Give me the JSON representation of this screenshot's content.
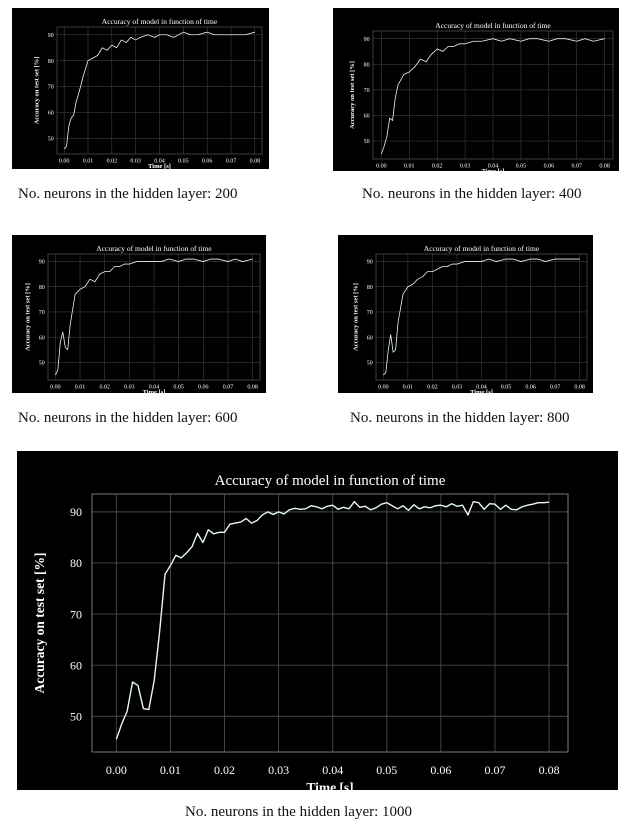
{
  "colors": {
    "background": "#000000",
    "line": "#e6f7ee",
    "grid": "#4a4a4a",
    "text": "#ffffff"
  },
  "chart_data": [
    {
      "type": "line",
      "title": "Accuracy of model in function of time",
      "xlabel": "Time [s]",
      "ylabel": "Accuracy on test set [%]",
      "caption": "No. neurons in the hidden layer: 200",
      "xlim": [
        -0.003,
        0.083
      ],
      "ylim": [
        44,
        93
      ],
      "xticks": [
        "0.00",
        "0.01",
        "0.02",
        "0.03",
        "0.04",
        "0.05",
        "0.06",
        "0.07",
        "0.08"
      ],
      "yticks": [
        "50",
        "60",
        "70",
        "80",
        "90"
      ],
      "x": [
        0,
        0.001,
        0.002,
        0.003,
        0.004,
        0.005,
        0.006,
        0.008,
        0.01,
        0.012,
        0.014,
        0.016,
        0.018,
        0.02,
        0.022,
        0.024,
        0.026,
        0.028,
        0.03,
        0.032,
        0.035,
        0.038,
        0.04,
        0.043,
        0.046,
        0.05,
        0.053,
        0.056,
        0.06,
        0.063,
        0.066,
        0.07,
        0.073,
        0.076,
        0.08
      ],
      "y": [
        46,
        47,
        55,
        58,
        59,
        64,
        67,
        74,
        80,
        81,
        82,
        85,
        84,
        86,
        85,
        88,
        87,
        89,
        88,
        89,
        90,
        89,
        90,
        90,
        89,
        91,
        90,
        90,
        91,
        90,
        90,
        90,
        90,
        90,
        91
      ]
    },
    {
      "type": "line",
      "title": "Accuracy of model in function of time",
      "xlabel": "Time [s]",
      "ylabel": "Accuracy on test set [%]",
      "caption": "No. neurons in the hidden layer: 400",
      "xlim": [
        -0.003,
        0.083
      ],
      "ylim": [
        43,
        93
      ],
      "xticks": [
        "0.00",
        "0.01",
        "0.02",
        "0.03",
        "0.04",
        "0.05",
        "0.06",
        "0.07",
        "0.08"
      ],
      "yticks": [
        "50",
        "60",
        "70",
        "80",
        "90"
      ],
      "x": [
        0,
        0.001,
        0.002,
        0.003,
        0.004,
        0.005,
        0.006,
        0.008,
        0.01,
        0.012,
        0.014,
        0.016,
        0.018,
        0.02,
        0.022,
        0.024,
        0.026,
        0.028,
        0.03,
        0.033,
        0.036,
        0.04,
        0.043,
        0.046,
        0.05,
        0.053,
        0.056,
        0.06,
        0.063,
        0.066,
        0.07,
        0.073,
        0.076,
        0.08
      ],
      "y": [
        45,
        48,
        52,
        59,
        58,
        67,
        72,
        76,
        77,
        79,
        82,
        81,
        84,
        86,
        85,
        87,
        87,
        88,
        88,
        89,
        89,
        90,
        89,
        90,
        89,
        90,
        90,
        89,
        90,
        90,
        89,
        90,
        89,
        90
      ]
    },
    {
      "type": "line",
      "title": "Accuracy of model in function of time",
      "xlabel": "Time [s]",
      "ylabel": "Accuracy on test set [%]",
      "caption": "No. neurons in the hidden layer: 600",
      "xlim": [
        -0.003,
        0.083
      ],
      "ylim": [
        43,
        93
      ],
      "xticks": [
        "0.00",
        "0.01",
        "0.02",
        "0.03",
        "0.04",
        "0.05",
        "0.06",
        "0.07",
        "0.08"
      ],
      "yticks": [
        "50",
        "60",
        "70",
        "80",
        "90"
      ],
      "x": [
        0,
        0.001,
        0.002,
        0.003,
        0.004,
        0.005,
        0.006,
        0.008,
        0.01,
        0.012,
        0.014,
        0.016,
        0.018,
        0.02,
        0.022,
        0.024,
        0.026,
        0.028,
        0.03,
        0.033,
        0.036,
        0.04,
        0.043,
        0.046,
        0.05,
        0.053,
        0.056,
        0.06,
        0.063,
        0.066,
        0.07,
        0.073,
        0.076,
        0.08
      ],
      "y": [
        45,
        47,
        58,
        62,
        56,
        55,
        65,
        77,
        79,
        80,
        83,
        82,
        85,
        86,
        86,
        88,
        88,
        89,
        89,
        90,
        90,
        90,
        90,
        91,
        90,
        91,
        91,
        90,
        91,
        91,
        90,
        91,
        90,
        91
      ]
    },
    {
      "type": "line",
      "title": "Accuracy of model in function of time",
      "xlabel": "Time [s]",
      "ylabel": "Accuracy on test set [%]",
      "caption": "No. neurons in the hidden layer: 800",
      "xlim": [
        -0.003,
        0.083
      ],
      "ylim": [
        43,
        93
      ],
      "xticks": [
        "0.00",
        "0.01",
        "0.02",
        "0.03",
        "0.04",
        "0.05",
        "0.06",
        "0.07",
        "0.08"
      ],
      "yticks": [
        "50",
        "60",
        "70",
        "80",
        "90"
      ],
      "x": [
        0,
        0.001,
        0.002,
        0.003,
        0.004,
        0.005,
        0.006,
        0.008,
        0.01,
        0.012,
        0.014,
        0.016,
        0.018,
        0.02,
        0.022,
        0.024,
        0.026,
        0.028,
        0.03,
        0.033,
        0.036,
        0.04,
        0.043,
        0.046,
        0.05,
        0.053,
        0.056,
        0.06,
        0.063,
        0.066,
        0.07,
        0.073,
        0.076,
        0.08
      ],
      "y": [
        45,
        46,
        55,
        61,
        54,
        55,
        66,
        77,
        80,
        81,
        83,
        84,
        86,
        86,
        87,
        88,
        88,
        89,
        89,
        90,
        90,
        90,
        91,
        90,
        91,
        91,
        90,
        91,
        91,
        90,
        91,
        91,
        91,
        91
      ]
    },
    {
      "type": "line",
      "title": "Accuracy of model in function of time",
      "xlabel": "Time [s]",
      "ylabel": "Accuracy on test set [%]",
      "caption": "No. neurons in the hidden layer: 1000",
      "xlim": [
        -0.0045,
        0.0835
      ],
      "ylim": [
        43,
        93.5
      ],
      "xticks": [
        "0.00",
        "0.01",
        "0.02",
        "0.03",
        "0.04",
        "0.05",
        "0.06",
        "0.07",
        "0.08"
      ],
      "yticks": [
        "50",
        "60",
        "70",
        "80",
        "90"
      ],
      "x": [
        0,
        0.001,
        0.002,
        0.003,
        0.004,
        0.005,
        0.006,
        0.007,
        0.008,
        0.009,
        0.01,
        0.011,
        0.012,
        0.013,
        0.014,
        0.015,
        0.016,
        0.017,
        0.018,
        0.019,
        0.02,
        0.021,
        0.022,
        0.023,
        0.024,
        0.025,
        0.026,
        0.027,
        0.028,
        0.029,
        0.03,
        0.031,
        0.032,
        0.033,
        0.034,
        0.035,
        0.036,
        0.037,
        0.038,
        0.039,
        0.04,
        0.041,
        0.042,
        0.043,
        0.044,
        0.045,
        0.046,
        0.047,
        0.048,
        0.049,
        0.05,
        0.051,
        0.052,
        0.053,
        0.054,
        0.055,
        0.056,
        0.057,
        0.058,
        0.059,
        0.06,
        0.061,
        0.062,
        0.063,
        0.064,
        0.065,
        0.066,
        0.067,
        0.068,
        0.069,
        0.07,
        0.071,
        0.072,
        0.073,
        0.074,
        0.075,
        0.076,
        0.077,
        0.078,
        0.079,
        0.08
      ],
      "y": [
        45.5,
        48.5,
        51.0,
        56.7,
        56.0,
        51.5,
        51.3,
        57.0,
        66.5,
        77.8,
        79.5,
        81.5,
        81.0,
        82.0,
        83.2,
        85.8,
        84.0,
        86.5,
        85.7,
        86.0,
        86.0,
        87.6,
        87.8,
        88.0,
        88.7,
        87.8,
        88.3,
        89.4,
        90.0,
        89.5,
        90.0,
        89.6,
        90.4,
        90.7,
        90.5,
        90.6,
        91.2,
        91.0,
        90.6,
        91.1,
        91.3,
        90.5,
        90.9,
        90.6,
        92.0,
        90.9,
        91.1,
        90.4,
        90.8,
        91.5,
        91.8,
        91.2,
        90.6,
        91.2,
        90.3,
        91.4,
        90.6,
        91.0,
        90.8,
        91.2,
        91.3,
        91.0,
        91.6,
        91.1,
        91.3,
        89.4,
        92.0,
        91.8,
        90.5,
        91.6,
        91.5,
        90.5,
        91.3,
        90.5,
        90.4,
        91.0,
        91.3,
        91.5,
        91.8,
        91.8,
        91.9
      ]
    }
  ]
}
